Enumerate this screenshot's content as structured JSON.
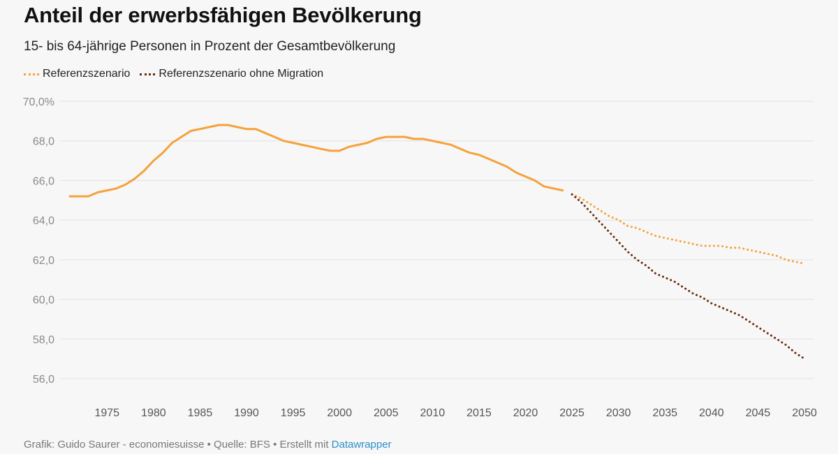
{
  "title": "Anteil der erwerbsfähigen Bevölkerung",
  "subtitle": "15- bis 64-jährige Personen in Prozent der Gesamtbevölkerung",
  "footer": {
    "prefix": "Grafik: Guido Saurer - economiesuisse • Quelle: BFS • Erstellt mit ",
    "link": "Datawrapper"
  },
  "colors": {
    "referenz": "#f5a23b",
    "ohne_migration": "#6b2a0e",
    "grid": "#e2e2e2",
    "background": "#f7f7f7"
  },
  "chart_data": {
    "type": "line",
    "title": "Anteil der erwerbsfähigen Bevölkerung",
    "xlabel": "",
    "ylabel": "",
    "xlim": [
      1971,
      2050
    ],
    "ylim": [
      56,
      70
    ],
    "x_ticks": [
      1975,
      1980,
      1985,
      1990,
      1995,
      2000,
      2005,
      2010,
      2015,
      2020,
      2025,
      2030,
      2035,
      2040,
      2045,
      2050
    ],
    "y_ticks": [
      {
        "value": 70,
        "label": "70,0%"
      },
      {
        "value": 68,
        "label": "68,0"
      },
      {
        "value": 66,
        "label": "66,0"
      },
      {
        "value": 64,
        "label": "64,0"
      },
      {
        "value": 62,
        "label": "62,0"
      },
      {
        "value": 60,
        "label": "60,0"
      },
      {
        "value": 58,
        "label": "58,0"
      },
      {
        "value": 56,
        "label": "56,0"
      }
    ],
    "grid": true,
    "legend_position": "top-left",
    "series": [
      {
        "name": "Referenzszenario",
        "style": "solid",
        "x": [
          1971,
          1972,
          1973,
          1974,
          1975,
          1976,
          1977,
          1978,
          1979,
          1980,
          1981,
          1982,
          1983,
          1984,
          1985,
          1986,
          1987,
          1988,
          1989,
          1990,
          1991,
          1992,
          1993,
          1994,
          1995,
          1996,
          1997,
          1998,
          1999,
          2000,
          2001,
          2002,
          2003,
          2004,
          2005,
          2006,
          2007,
          2008,
          2009,
          2010,
          2011,
          2012,
          2013,
          2014,
          2015,
          2016,
          2017,
          2018,
          2019,
          2020,
          2021,
          2022,
          2023,
          2024
        ],
        "y": [
          65.2,
          65.2,
          65.2,
          65.4,
          65.5,
          65.6,
          65.8,
          66.1,
          66.5,
          67.0,
          67.4,
          67.9,
          68.2,
          68.5,
          68.6,
          68.7,
          68.8,
          68.8,
          68.7,
          68.6,
          68.6,
          68.4,
          68.2,
          68.0,
          67.9,
          67.8,
          67.7,
          67.6,
          67.5,
          67.5,
          67.7,
          67.8,
          67.9,
          68.1,
          68.2,
          68.2,
          68.2,
          68.1,
          68.1,
          68.0,
          67.9,
          67.8,
          67.6,
          67.4,
          67.3,
          67.1,
          66.9,
          66.7,
          66.4,
          66.2,
          66.0,
          65.7,
          65.6,
          65.5
        ]
      },
      {
        "name": "Referenzszenario",
        "style": "dotted",
        "x": [
          2025,
          2026,
          2027,
          2028,
          2029,
          2030,
          2031,
          2032,
          2033,
          2034,
          2035,
          2036,
          2037,
          2038,
          2039,
          2040,
          2041,
          2042,
          2043,
          2044,
          2045,
          2046,
          2047,
          2048,
          2049,
          2050
        ],
        "y": [
          65.3,
          65.1,
          64.8,
          64.5,
          64.2,
          64.0,
          63.7,
          63.6,
          63.4,
          63.2,
          63.1,
          63.0,
          62.9,
          62.8,
          62.7,
          62.7,
          62.7,
          62.6,
          62.6,
          62.5,
          62.4,
          62.3,
          62.2,
          62.0,
          61.9,
          61.8
        ]
      },
      {
        "name": "Referenzszenario ohne Migration",
        "style": "dotted",
        "x": [
          2025,
          2026,
          2027,
          2028,
          2029,
          2030,
          2031,
          2032,
          2033,
          2034,
          2035,
          2036,
          2037,
          2038,
          2039,
          2040,
          2041,
          2042,
          2043,
          2044,
          2045,
          2046,
          2047,
          2048,
          2049,
          2050
        ],
        "y": [
          65.3,
          64.9,
          64.4,
          63.9,
          63.4,
          62.9,
          62.4,
          62.0,
          61.7,
          61.3,
          61.1,
          60.9,
          60.6,
          60.3,
          60.1,
          59.8,
          59.6,
          59.4,
          59.2,
          58.9,
          58.6,
          58.3,
          58.0,
          57.7,
          57.3,
          57.0
        ]
      }
    ]
  },
  "legend": [
    {
      "label": "Referenzszenario",
      "color_key": "referenz"
    },
    {
      "label": "Referenzszenario ohne Migration",
      "color_key": "ohne_migration"
    }
  ]
}
